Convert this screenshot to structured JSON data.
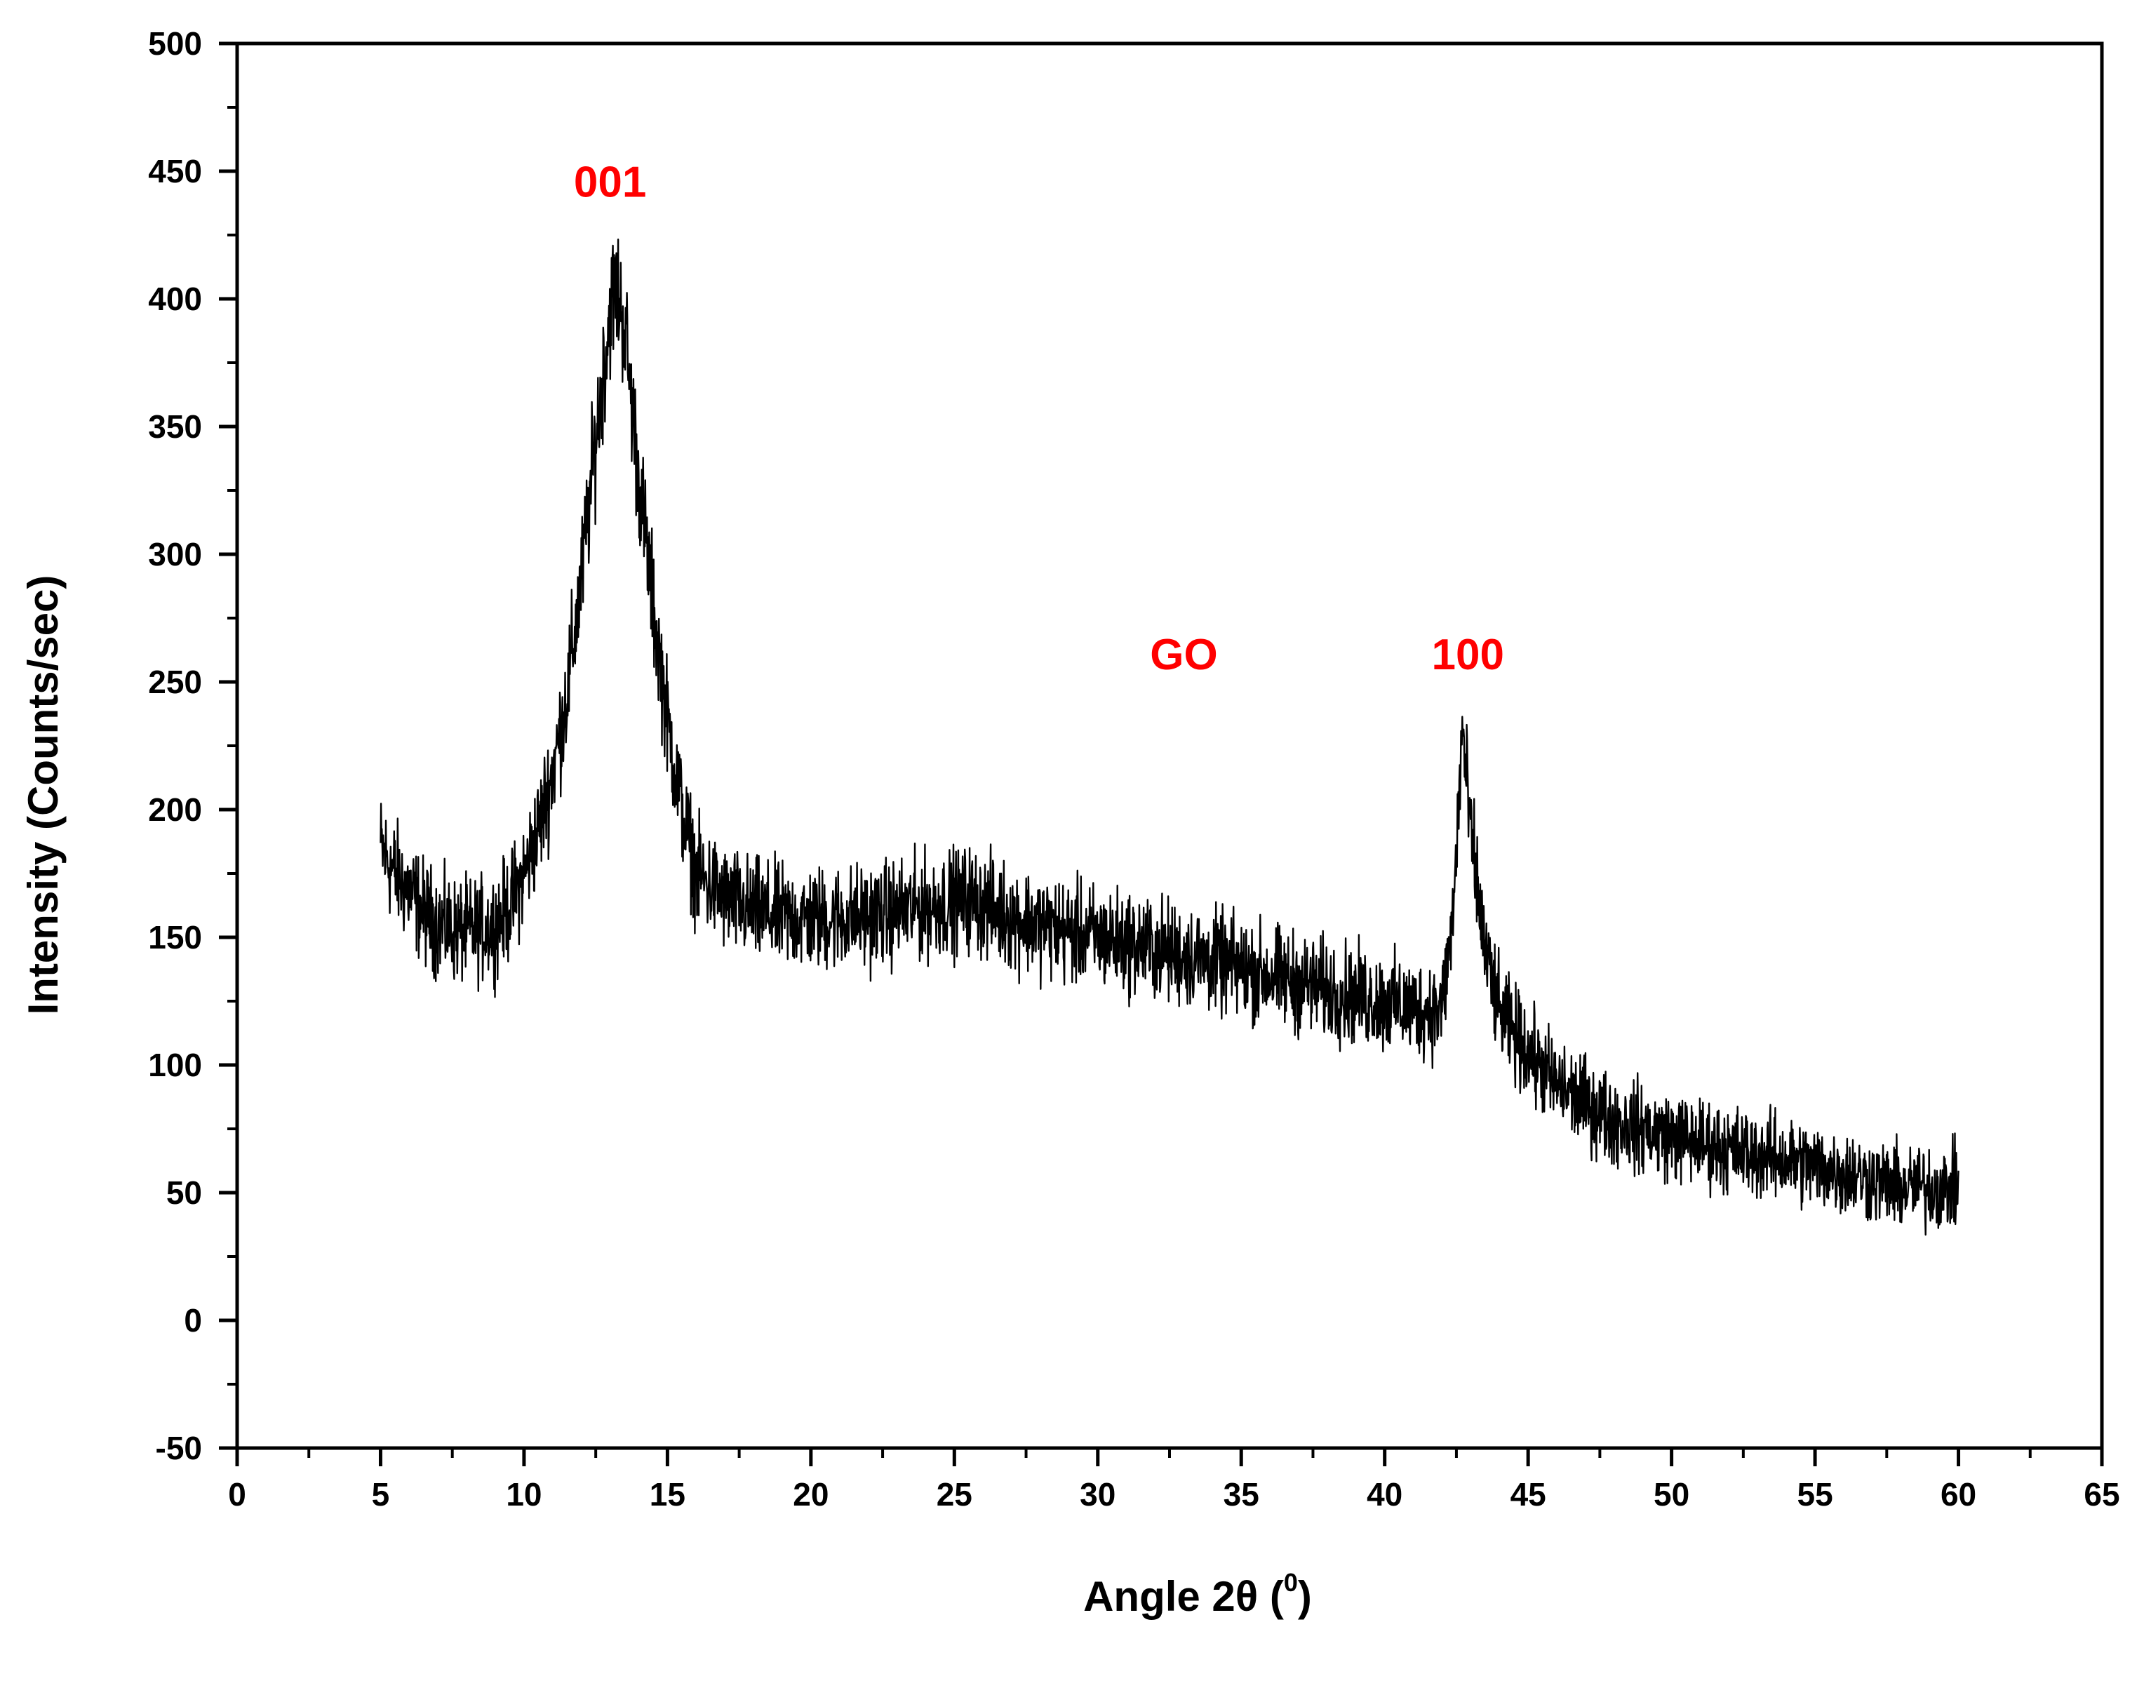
{
  "chart_data": {
    "type": "line",
    "title": "",
    "xlabel": "Angle 2θ (",
    "xlabel_sup": "0",
    "xlabel_close": ")",
    "ylabel": "Intensity (Counts/sec)",
    "xlim": [
      0,
      65
    ],
    "ylim": [
      -50,
      500
    ],
    "xticks": [
      0,
      5,
      10,
      15,
      20,
      25,
      30,
      35,
      40,
      45,
      50,
      55,
      60,
      65
    ],
    "yticks": [
      -50,
      0,
      50,
      100,
      150,
      200,
      250,
      300,
      350,
      400,
      450,
      500
    ],
    "grid": false,
    "legend": "none",
    "series": [
      {
        "name": "GO",
        "color": "#000000",
        "noise_amplitude": 18,
        "x": [
          5,
          5.5,
          6,
          6.5,
          7,
          7.5,
          8,
          8.5,
          9,
          9.5,
          10,
          10.5,
          11,
          11.5,
          12,
          12.5,
          13,
          13.2,
          13.5,
          14,
          14.5,
          15,
          15.5,
          16,
          17,
          18,
          19,
          20,
          22,
          24,
          25.5,
          27,
          29,
          31,
          33,
          35,
          37,
          39,
          41,
          42,
          42.4,
          42.7,
          43,
          43.5,
          44,
          45,
          46,
          47,
          48,
          50,
          52,
          54,
          56,
          58,
          60
        ],
        "values": [
          185,
          175,
          168,
          160,
          155,
          153,
          152,
          153,
          155,
          162,
          175,
          192,
          215,
          245,
          290,
          345,
          395,
          405,
          390,
          330,
          280,
          235,
          200,
          175,
          165,
          160,
          158,
          157,
          158,
          162,
          165,
          158,
          152,
          148,
          143,
          138,
          132,
          127,
          122,
          122,
          160,
          232,
          190,
          145,
          120,
          105,
          92,
          85,
          78,
          72,
          67,
          63,
          58,
          52,
          52
        ]
      }
    ],
    "annotations": [
      {
        "text": "001",
        "x": 13,
        "y": 440,
        "color": "#ff0000"
      },
      {
        "text": "GO",
        "x": 33,
        "y": 255,
        "color": "#ff0000"
      },
      {
        "text": "100",
        "x": 42.9,
        "y": 255,
        "color": "#ff0000"
      }
    ]
  }
}
